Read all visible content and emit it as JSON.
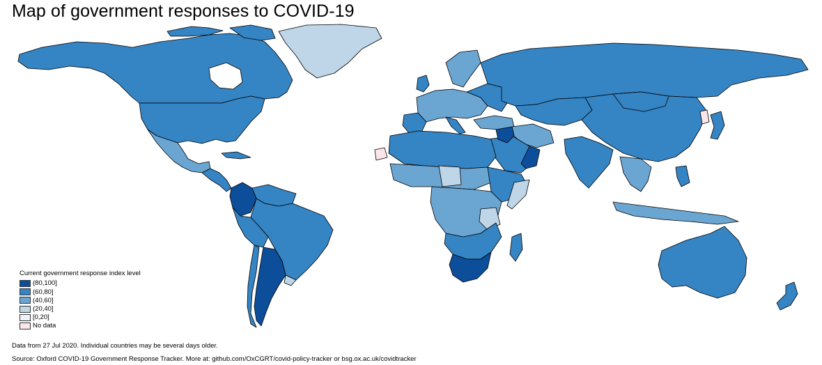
{
  "title": "Map of government responses to COVID-19",
  "legend": {
    "title": "Current government response index level",
    "items": [
      {
        "label": "(80,100]",
        "color": "#0d4e9a"
      },
      {
        "label": "(60,80]",
        "color": "#3584c3"
      },
      {
        "label": "(40,60]",
        "color": "#6ba6d3"
      },
      {
        "label": "(20,40]",
        "color": "#bed6e8"
      },
      {
        "label": "[0,20]",
        "color": "#eef3fa"
      },
      {
        "label": "No data",
        "color": "#fbe6ea"
      }
    ]
  },
  "footnotes": {
    "data_date": "Data from 27 Jul 2020. Individual countries may be several days older.",
    "source": "Source: Oxford COVID-19 Government Response Tracker. More at: github.com/OxCGRT/covid-policy-tracker or bsg.ox.ac.uk/covidtracker"
  },
  "colors": {
    "very_high": "#0d4e9a",
    "high": "#3584c3",
    "medium": "#6ba6d3",
    "low": "#bed6e8",
    "very_low": "#eef3fa",
    "no_data": "#fbe6ea"
  }
}
